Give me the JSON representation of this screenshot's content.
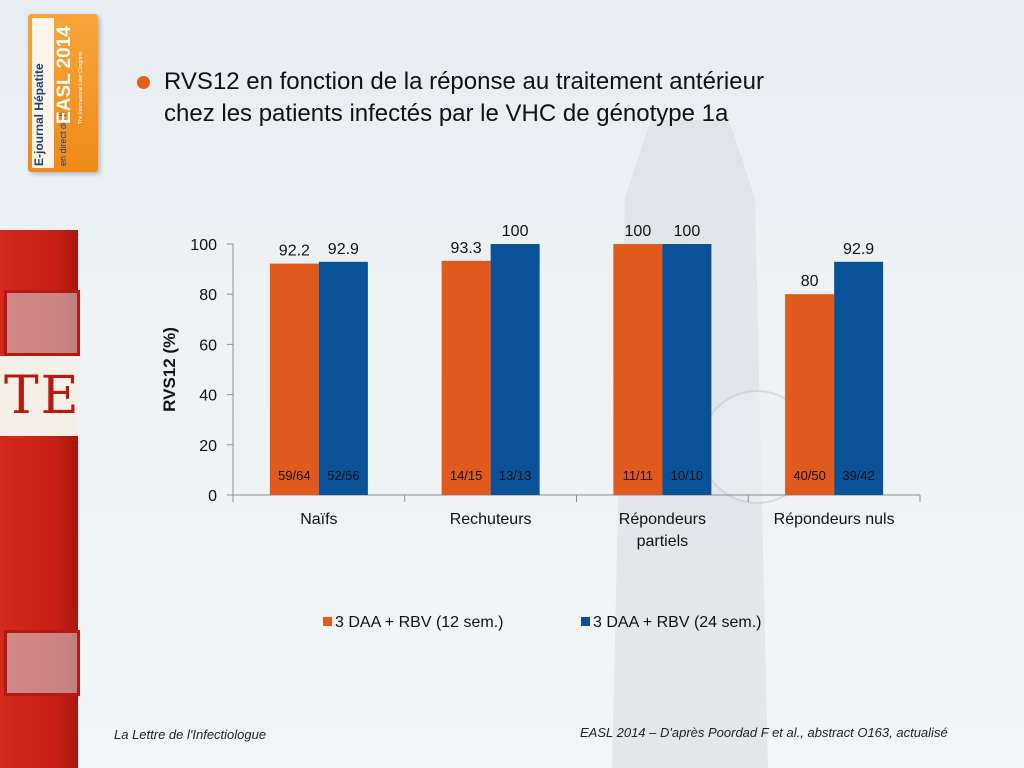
{
  "slide": {
    "title_line1": "RVS12 en fonction de la réponse au traitement antérieur",
    "title_line2": "chez les patients infectés par le VHC de génotype 1a",
    "bullet_color": "#e2611c"
  },
  "badge": {
    "line1": "E-journal Hépatite",
    "line2": "en direct de l'",
    "line3": "EASL 2014",
    "line4": "The International Liver Congress"
  },
  "footer": {
    "left": "La Lettre de l'Infectiologue",
    "right": "EASL 2014 – D'après Poordad F et al., abstract O163, actualisé"
  },
  "chart_data": {
    "type": "bar",
    "categories": [
      "Naïfs",
      "Rechuteurs",
      "Répondeurs partiels",
      "Répondeurs nuls"
    ],
    "category_lines": [
      [
        "Naïfs"
      ],
      [
        "Rechuteurs"
      ],
      [
        "Répondeurs",
        "partiels"
      ],
      [
        "Répondeurs nuls"
      ]
    ],
    "series": [
      {
        "name": "3 DAA + RBV (12 sem.)",
        "color": "#e05a1d",
        "values": [
          92.2,
          93.3,
          100,
          80
        ],
        "value_labels": [
          "92.2",
          "93.3",
          "100",
          "80"
        ],
        "counts": [
          "59/64",
          "14/15",
          "11/11",
          "40/50"
        ]
      },
      {
        "name": "3 DAA + RBV (24 sem.)",
        "color": "#0a5298",
        "values": [
          92.9,
          100,
          100,
          92.9
        ],
        "value_labels": [
          "92.9",
          "100",
          "100",
          "92.9"
        ],
        "counts": [
          "52/56",
          "13/13",
          "10/10",
          "39/42"
        ]
      }
    ],
    "ylabel": "RVS12 (%)",
    "ylim": [
      0,
      100
    ],
    "yticks": [
      0,
      20,
      40,
      60,
      80,
      100
    ],
    "grid": false,
    "legend": "bottom"
  }
}
